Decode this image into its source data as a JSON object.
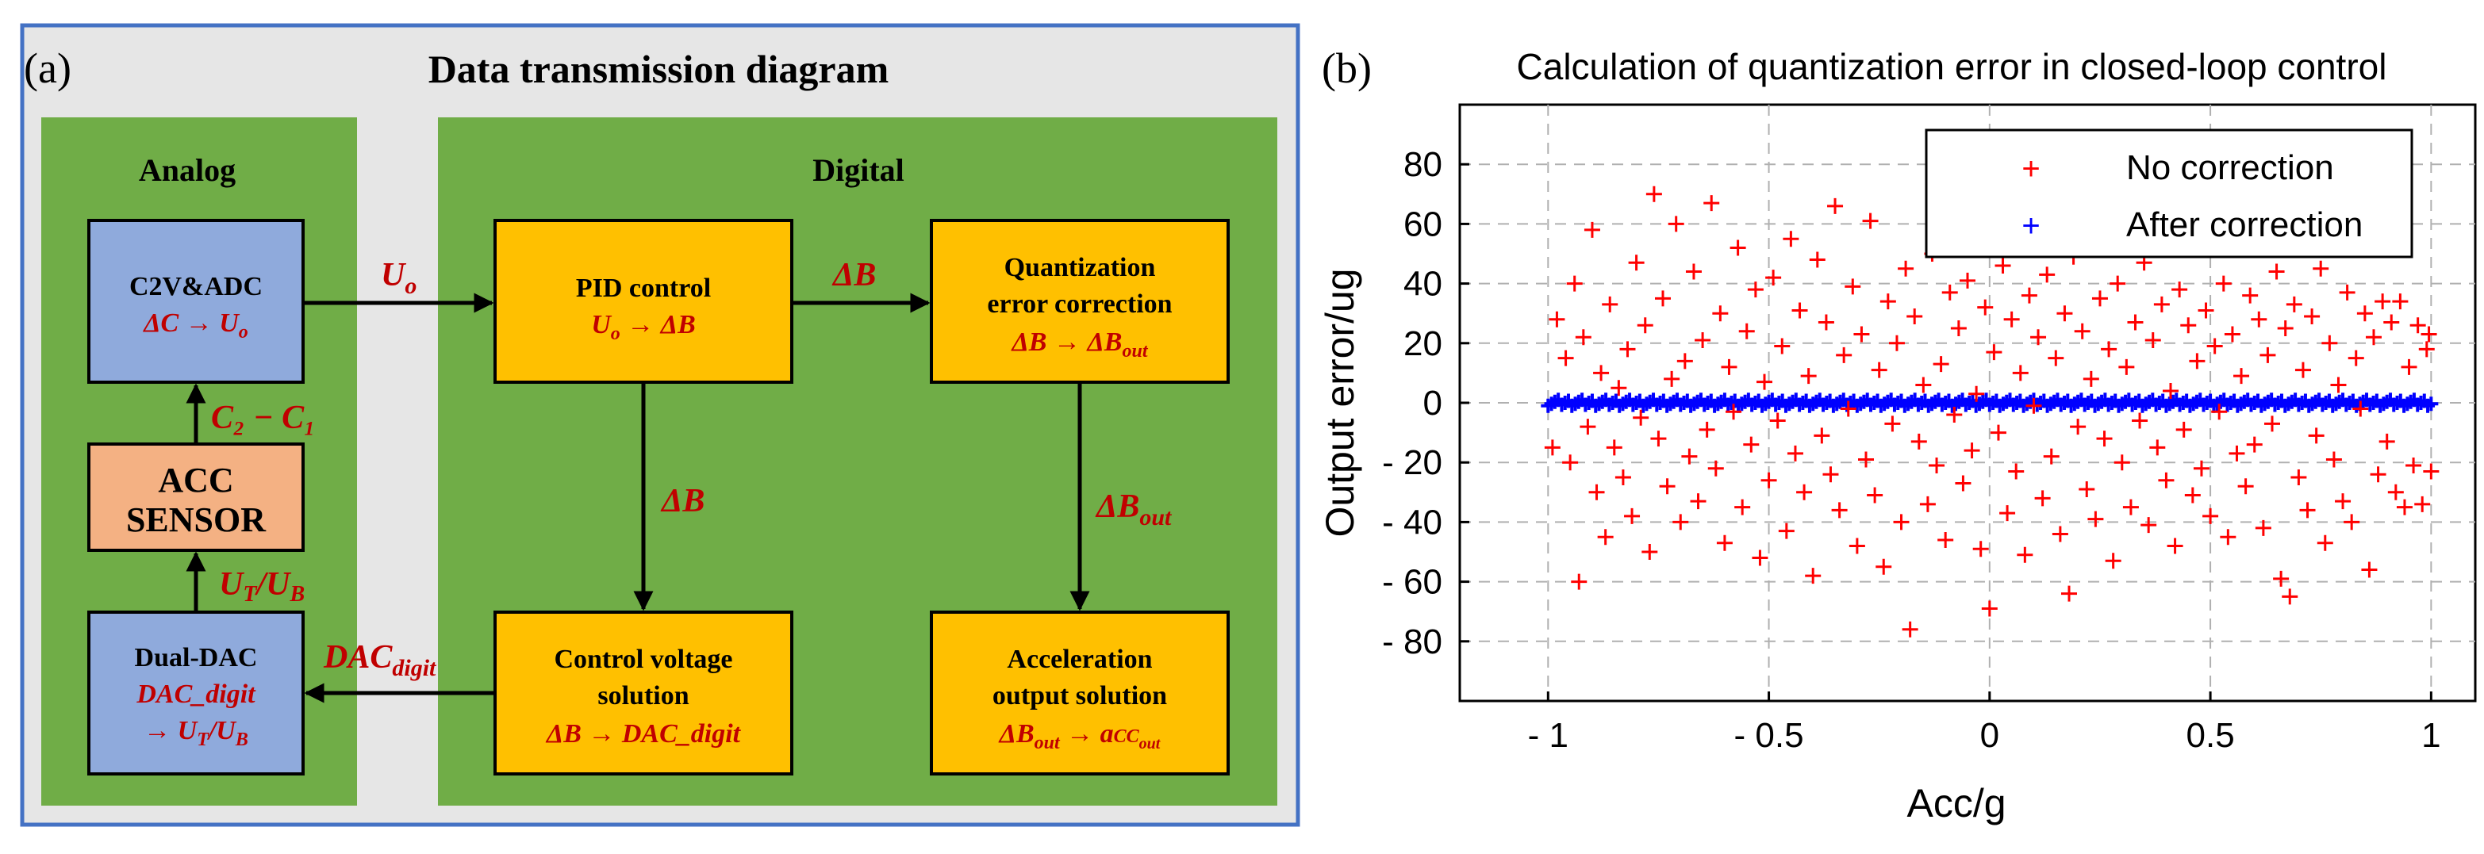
{
  "panel_a": {
    "label": "(a)",
    "title": "Data transmission diagram",
    "analog_label": "Analog",
    "digital_label": "Digital",
    "colors": {
      "frame_border": "#4472c4",
      "frame_fill": "#e6e6e6",
      "region_green": "#70ad47",
      "block_blue": "#8faadc",
      "block_orange": "#f4b183",
      "block_yellow": "#ffc000",
      "label_red": "#c00000"
    },
    "blocks": {
      "c2v_adc": {
        "title": "C2V&ADC",
        "formula": "ΔC → U",
        "formula_sub": "o"
      },
      "acc_sensor": {
        "line1": "ACC",
        "line2": "SENSOR"
      },
      "dual_dac": {
        "title": "Dual-DAC",
        "formula_line1": "DAC_digit",
        "formula_line2": "→ U",
        "formula_line2_sub1": "T",
        "formula_line2_mid": "/U",
        "formula_line2_sub2": "B"
      },
      "pid": {
        "title": "PID control",
        "formula_a": "U",
        "formula_a_sub": "o",
        "formula_b": " → ΔB"
      },
      "quant": {
        "line1": "Quantization",
        "line2": "error correction",
        "formula_a": "ΔB → ΔB",
        "formula_a_sub": "out"
      },
      "cvs": {
        "line1": "Control voltage",
        "line2": "solution",
        "formula": "ΔB → DAC_digit"
      },
      "aos": {
        "line1": "Acceleration",
        "line2": "output solution",
        "formula_a": "ΔB",
        "formula_a_sub": "out",
        "formula_b": " → a",
        "formula_b_sub": "CC",
        "formula_b_subsub": "out"
      }
    },
    "arrow_labels": {
      "uo": {
        "main": "U",
        "sub": "o"
      },
      "db_top": "ΔB",
      "db_mid": "ΔB",
      "db_out": {
        "main": "ΔB",
        "sub": "out"
      },
      "c2c1": "C₂ − C₁",
      "utub": {
        "a": "U",
        "a_sub": "T",
        "b": "/U",
        "b_sub": "B"
      },
      "dac_digit": {
        "main": "DAC",
        "sub": "digit"
      }
    }
  },
  "panel_b": {
    "label": "(b)",
    "chart_data": {
      "type": "scatter",
      "title": "Calculation of quantization error in closed-loop control",
      "xlabel": "Acc/g",
      "ylabel": "Output error/ug",
      "xlim": [
        -1.2,
        1.1
      ],
      "ylim": [
        -100,
        100
      ],
      "xticks": [
        -1,
        -0.5,
        0,
        0.5,
        1
      ],
      "xtick_labels": [
        "- 1",
        "- 0.5",
        "0",
        "0.5",
        "1"
      ],
      "yticks": [
        -80,
        -60,
        -40,
        -20,
        0,
        20,
        40,
        60,
        80
      ],
      "ytick_labels": [
        "- 80",
        "- 60",
        "- 40",
        "- 20",
        "0",
        "20",
        "40",
        "60",
        "80"
      ],
      "grid": true,
      "legend_position": "top-right",
      "series": [
        {
          "name": "No correction",
          "marker": "+",
          "color": "#ff0000",
          "points": [
            [
              -0.98,
              28
            ],
            [
              -0.96,
              15
            ],
            [
              -0.95,
              -20
            ],
            [
              -0.94,
              40
            ],
            [
              -0.93,
              -60
            ],
            [
              -0.92,
              22
            ],
            [
              -0.91,
              -8
            ],
            [
              -0.9,
              58
            ],
            [
              -0.89,
              -30
            ],
            [
              -0.88,
              10
            ],
            [
              -0.87,
              -45
            ],
            [
              -0.86,
              33
            ],
            [
              -0.85,
              -15
            ],
            [
              -0.84,
              5
            ],
            [
              -0.83,
              -25
            ],
            [
              -0.82,
              18
            ],
            [
              -0.81,
              -38
            ],
            [
              -0.8,
              47
            ],
            [
              -0.79,
              -5
            ],
            [
              -0.78,
              26
            ],
            [
              -0.77,
              -50
            ],
            [
              -0.76,
              70
            ],
            [
              -0.75,
              -12
            ],
            [
              -0.74,
              35
            ],
            [
              -0.73,
              -28
            ],
            [
              -0.72,
              8
            ],
            [
              -0.71,
              60
            ],
            [
              -0.7,
              -40
            ],
            [
              -0.69,
              14
            ],
            [
              -0.68,
              -18
            ],
            [
              -0.67,
              44
            ],
            [
              -0.66,
              -33
            ],
            [
              -0.65,
              21
            ],
            [
              -0.64,
              -9
            ],
            [
              -0.63,
              67
            ],
            [
              -0.62,
              -22
            ],
            [
              -0.61,
              30
            ],
            [
              -0.6,
              -47
            ],
            [
              -0.59,
              12
            ],
            [
              -0.58,
              -3
            ],
            [
              -0.57,
              52
            ],
            [
              -0.56,
              -35
            ],
            [
              -0.55,
              24
            ],
            [
              -0.54,
              -14
            ],
            [
              -0.53,
              38
            ],
            [
              -0.52,
              -52
            ],
            [
              -0.51,
              7
            ],
            [
              -0.5,
              -26
            ],
            [
              -0.49,
              42
            ],
            [
              -0.48,
              -6
            ],
            [
              -0.47,
              19
            ],
            [
              -0.46,
              -43
            ],
            [
              -0.45,
              55
            ],
            [
              -0.44,
              -17
            ],
            [
              -0.43,
              31
            ],
            [
              -0.42,
              -30
            ],
            [
              -0.41,
              9
            ],
            [
              -0.4,
              -58
            ],
            [
              -0.39,
              48
            ],
            [
              -0.38,
              -11
            ],
            [
              -0.37,
              27
            ],
            [
              -0.36,
              -24
            ],
            [
              -0.35,
              66
            ],
            [
              -0.34,
              -36
            ],
            [
              -0.33,
              16
            ],
            [
              -0.32,
              -2
            ],
            [
              -0.31,
              39
            ],
            [
              -0.3,
              -48
            ],
            [
              -0.29,
              23
            ],
            [
              -0.28,
              -19
            ],
            [
              -0.27,
              61
            ],
            [
              -0.26,
              -31
            ],
            [
              -0.25,
              11
            ],
            [
              -0.24,
              -55
            ],
            [
              -0.23,
              34
            ],
            [
              -0.22,
              -7
            ],
            [
              -0.21,
              20
            ],
            [
              -0.2,
              -40
            ],
            [
              -0.19,
              45
            ],
            [
              -0.18,
              -76
            ],
            [
              -0.17,
              29
            ],
            [
              -0.16,
              -13
            ],
            [
              -0.15,
              6
            ],
            [
              -0.14,
              -34
            ],
            [
              -0.13,
              50
            ],
            [
              -0.12,
              -21
            ],
            [
              -0.11,
              13
            ],
            [
              -0.1,
              -46
            ],
            [
              -0.09,
              37
            ],
            [
              -0.08,
              -4
            ],
            [
              -0.07,
              25
            ],
            [
              -0.06,
              -27
            ],
            [
              -0.05,
              41
            ],
            [
              -0.04,
              -16
            ],
            [
              -0.03,
              3
            ],
            [
              -0.02,
              -49
            ],
            [
              -0.01,
              32
            ],
            [
              0.0,
              -69
            ],
            [
              0.01,
              17
            ],
            [
              0.02,
              -10
            ],
            [
              0.03,
              46
            ],
            [
              0.04,
              -37
            ],
            [
              0.05,
              28
            ],
            [
              0.06,
              -23
            ],
            [
              0.07,
              10
            ],
            [
              0.08,
              -51
            ],
            [
              0.09,
              36
            ],
            [
              0.1,
              -1
            ],
            [
              0.11,
              22
            ],
            [
              0.12,
              -32
            ],
            [
              0.13,
              43
            ],
            [
              0.14,
              -18
            ],
            [
              0.15,
              15
            ],
            [
              0.16,
              -44
            ],
            [
              0.17,
              30
            ],
            [
              0.18,
              -64
            ],
            [
              0.19,
              49
            ],
            [
              0.2,
              -8
            ],
            [
              0.21,
              24
            ],
            [
              0.22,
              -29
            ],
            [
              0.23,
              8
            ],
            [
              0.24,
              -39
            ],
            [
              0.25,
              35
            ],
            [
              0.26,
              -12
            ],
            [
              0.27,
              18
            ],
            [
              0.28,
              -53
            ],
            [
              0.29,
              40
            ],
            [
              0.3,
              -20
            ],
            [
              0.31,
              12
            ],
            [
              0.32,
              -35
            ],
            [
              0.33,
              27
            ],
            [
              0.34,
              -6
            ],
            [
              0.35,
              47
            ],
            [
              0.36,
              -41
            ],
            [
              0.37,
              21
            ],
            [
              0.38,
              -15
            ],
            [
              0.39,
              33
            ],
            [
              0.4,
              -26
            ],
            [
              0.41,
              4
            ],
            [
              0.42,
              -48
            ],
            [
              0.43,
              38
            ],
            [
              0.44,
              -9
            ],
            [
              0.45,
              26
            ],
            [
              0.46,
              -31
            ],
            [
              0.47,
              14
            ],
            [
              0.48,
              -22
            ],
            [
              0.49,
              31
            ],
            [
              0.5,
              -38
            ],
            [
              0.51,
              19
            ],
            [
              0.52,
              -3
            ],
            [
              0.53,
              40
            ],
            [
              0.54,
              -45
            ],
            [
              0.55,
              23
            ],
            [
              0.56,
              -17
            ],
            [
              0.57,
              9
            ],
            [
              0.58,
              -28
            ],
            [
              0.59,
              36
            ],
            [
              0.6,
              -14
            ],
            [
              0.61,
              28
            ],
            [
              0.62,
              -42
            ],
            [
              0.63,
              16
            ],
            [
              0.64,
              -7
            ],
            [
              0.65,
              44
            ],
            [
              0.66,
              -59
            ],
            [
              0.67,
              25
            ],
            [
              0.68,
              -65
            ],
            [
              0.69,
              33
            ],
            [
              0.7,
              -25
            ],
            [
              0.71,
              11
            ],
            [
              0.72,
              -36
            ],
            [
              0.73,
              29
            ],
            [
              0.74,
              -11
            ],
            [
              0.75,
              45
            ],
            [
              0.76,
              -47
            ],
            [
              0.77,
              20
            ],
            [
              0.78,
              -19
            ],
            [
              0.79,
              6
            ],
            [
              0.8,
              -33
            ],
            [
              0.81,
              37
            ],
            [
              0.82,
              -40
            ],
            [
              0.83,
              15
            ],
            [
              0.84,
              -2
            ],
            [
              0.85,
              30
            ],
            [
              0.86,
              -56
            ],
            [
              0.87,
              22
            ],
            [
              0.88,
              -24
            ],
            [
              0.89,
              34
            ],
            [
              0.9,
              -13
            ],
            [
              0.91,
              27
            ],
            [
              0.92,
              -30
            ],
            [
              0.93,
              34
            ],
            [
              0.94,
              -35
            ],
            [
              0.95,
              12
            ],
            [
              0.96,
              -21
            ],
            [
              0.97,
              26
            ],
            [
              0.98,
              -34
            ],
            [
              0.99,
              18
            ],
            [
              1.0,
              -23
            ],
            [
              -0.99,
              -15
            ],
            [
              0.995,
              23
            ]
          ]
        },
        {
          "name": "After correction",
          "marker": "+",
          "color": "#0000ff",
          "x_range": [
            -1,
            1
          ],
          "y_range": [
            -1,
            1
          ]
        }
      ]
    }
  }
}
